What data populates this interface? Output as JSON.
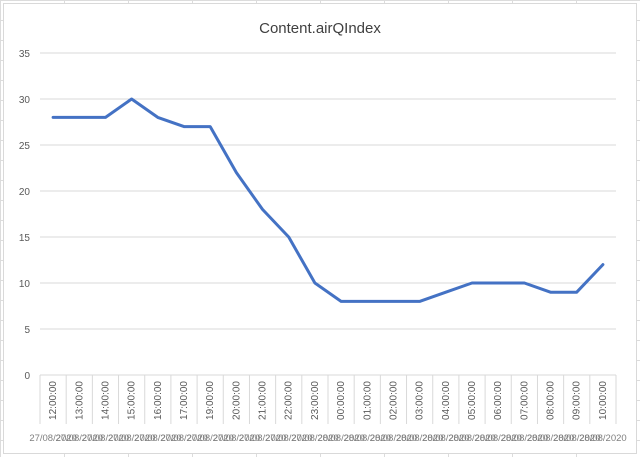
{
  "chart_data": {
    "type": "line",
    "title": "Content.airQIndex",
    "xlabel": "",
    "ylabel": "",
    "ylim": [
      0,
      35
    ],
    "yticks": [
      0,
      5,
      10,
      15,
      20,
      25,
      30,
      35
    ],
    "grid": true,
    "legend": "none",
    "color": "#4472c4",
    "times": [
      "12:00:00",
      "13:00:00",
      "14:00:00",
      "15:00:00",
      "16:00:00",
      "17:00:00",
      "19:00:00",
      "20:00:00",
      "21:00:00",
      "22:00:00",
      "23:00:00",
      "00:00:00",
      "01:00:00",
      "02:00:00",
      "03:00:00",
      "04:00:00",
      "05:00:00",
      "06:00:00",
      "07:00:00",
      "08:00:00",
      "09:00:00",
      "10:00:00"
    ],
    "dates": [
      "27/08/2020",
      "27/08/2020",
      "27/08/2020",
      "27/08/2020",
      "27/08/2020",
      "27/08/2020",
      "27/08/2020",
      "27/08/2020",
      "27/08/2020",
      "27/08/2020",
      "27/08/2020",
      "28/08/2020",
      "28/08/2020",
      "28/08/2020",
      "28/08/2020",
      "28/08/2020",
      "28/08/2020",
      "28/08/2020",
      "28/08/2020",
      "28/08/2020",
      "28/08/2020",
      "28/08/2020"
    ],
    "values": [
      28,
      28,
      28,
      30,
      28,
      27,
      27,
      22,
      18,
      15,
      10,
      8,
      8,
      8,
      8,
      9,
      10,
      10,
      10,
      9,
      9,
      12
    ]
  }
}
